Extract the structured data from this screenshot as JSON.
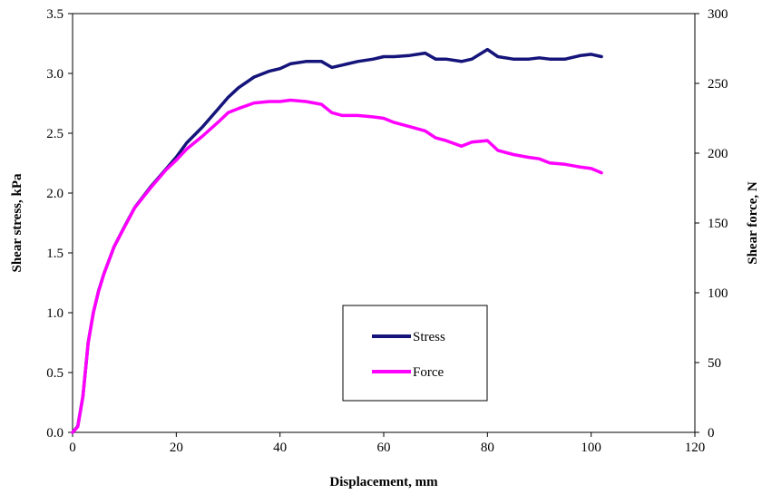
{
  "chart_data": {
    "type": "line",
    "title": "",
    "xlabel": "Displacement, mm",
    "ylabel": "Shear stress, kPa",
    "y2label": "Shear force, N",
    "xlim": [
      0,
      120
    ],
    "ylim": [
      0,
      3.5
    ],
    "y2lim": [
      0,
      300
    ],
    "x_ticks": [
      "0",
      "20",
      "40",
      "60",
      "80",
      "100",
      "120"
    ],
    "y_ticks": [
      "0.0",
      "0.5",
      "1.0",
      "1.5",
      "2.0",
      "2.5",
      "3.0",
      "3.5"
    ],
    "y2_ticks": [
      "0",
      "50",
      "100",
      "150",
      "200",
      "250",
      "300"
    ],
    "grid": false,
    "legend_position": "center-right",
    "series": [
      {
        "name": "Stress",
        "axis": "left",
        "color": "#14147a",
        "x": [
          0,
          1,
          2,
          3,
          4,
          5,
          6,
          8,
          10,
          12,
          15,
          18,
          20,
          22,
          25,
          28,
          30,
          32,
          35,
          38,
          40,
          42,
          45,
          48,
          50,
          52,
          55,
          58,
          60,
          62,
          65,
          68,
          70,
          72,
          75,
          77,
          80,
          82,
          85,
          88,
          90,
          92,
          95,
          98,
          100,
          102
        ],
        "values": [
          0,
          0.05,
          0.3,
          0.75,
          1.0,
          1.18,
          1.32,
          1.55,
          1.72,
          1.88,
          2.05,
          2.2,
          2.3,
          2.42,
          2.55,
          2.7,
          2.8,
          2.88,
          2.97,
          3.02,
          3.04,
          3.08,
          3.1,
          3.1,
          3.05,
          3.07,
          3.1,
          3.12,
          3.14,
          3.14,
          3.15,
          3.17,
          3.12,
          3.12,
          3.1,
          3.12,
          3.2,
          3.14,
          3.12,
          3.12,
          3.13,
          3.12,
          3.12,
          3.15,
          3.16,
          3.14
        ]
      },
      {
        "name": "Force",
        "axis": "right",
        "color": "#ff00ff",
        "x": [
          0,
          1,
          2,
          3,
          4,
          5,
          6,
          8,
          10,
          12,
          15,
          18,
          20,
          22,
          25,
          28,
          30,
          32,
          35,
          38,
          40,
          42,
          45,
          48,
          50,
          52,
          55,
          58,
          60,
          62,
          65,
          68,
          70,
          72,
          75,
          77,
          80,
          82,
          85,
          88,
          90,
          92,
          95,
          98,
          100,
          102
        ],
        "values": [
          0,
          4,
          26,
          64,
          86,
          101,
          113,
          133,
          147,
          161,
          175,
          188,
          195,
          203,
          212,
          222,
          229,
          232,
          236,
          237,
          237,
          238,
          237,
          235,
          229,
          227,
          227,
          226,
          225,
          222,
          219,
          216,
          211,
          209,
          205,
          208,
          209,
          202,
          199,
          197,
          196,
          193,
          192,
          190,
          189,
          186
        ]
      }
    ]
  }
}
